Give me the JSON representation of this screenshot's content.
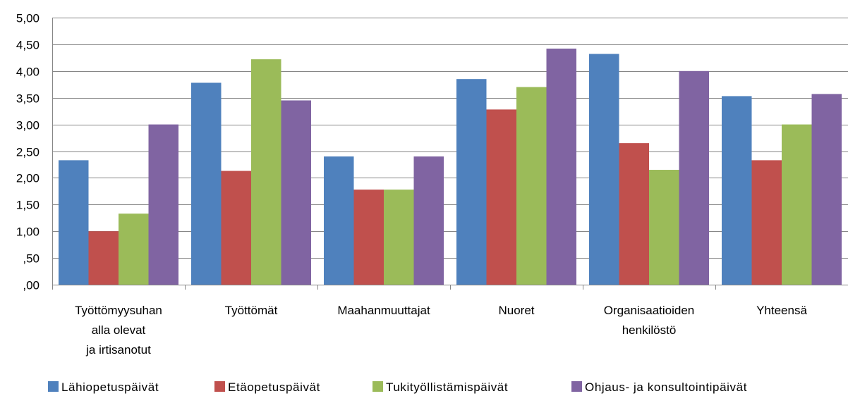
{
  "chart_data": {
    "type": "bar",
    "categories": [
      [
        "Työttömyysuhan",
        "alla olevat",
        "ja irtisanotut"
      ],
      [
        "Työttömät"
      ],
      [
        "Maahanmuuttajat"
      ],
      [
        "Nuoret"
      ],
      [
        "Organisaatioiden",
        "henkilöstö"
      ],
      [
        "Yhteensä"
      ]
    ],
    "series": [
      {
        "name": "Lähiopetuspäivät",
        "color": "#4F81BD",
        "values": [
          2.33,
          3.78,
          2.4,
          3.85,
          4.32,
          3.53
        ]
      },
      {
        "name": "Etäopetuspäivät",
        "color": "#C0504D",
        "values": [
          1.0,
          2.13,
          1.78,
          3.28,
          2.65,
          2.33
        ]
      },
      {
        "name": "Tukityöllistämispäivät",
        "color": "#9BBB59",
        "values": [
          1.33,
          4.22,
          1.78,
          3.7,
          2.15,
          3.0
        ]
      },
      {
        "name": "Ohjaus- ja konsultointipäivät",
        "color": "#8064A2",
        "values": [
          3.0,
          3.45,
          2.4,
          4.42,
          4.0,
          3.57
        ]
      }
    ],
    "ylim": [
      0,
      5
    ],
    "yticks": [
      ",00",
      ",50",
      "1,00",
      "1,50",
      "2,00",
      "2,50",
      "3,00",
      "3,50",
      "4,00",
      "4,50",
      "5,00"
    ],
    "grid": true,
    "legend_position": "bottom"
  }
}
